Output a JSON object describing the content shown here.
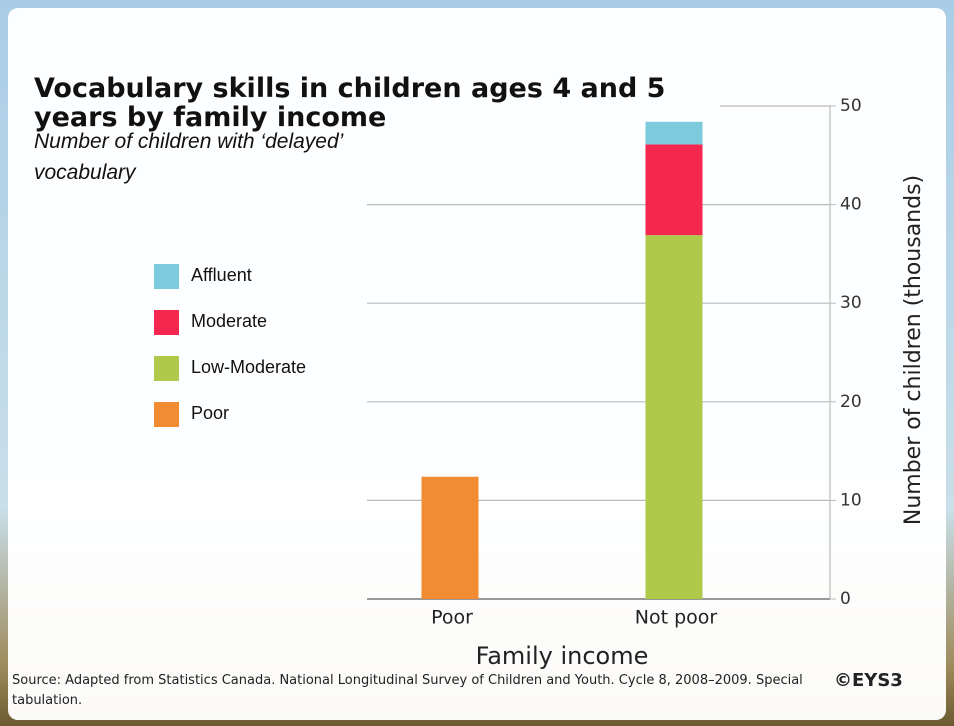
{
  "chart_data": {
    "type": "stacked_bar",
    "title": "Vocabulary skills in children ages 4 and 5 years by family income",
    "subtitle": "Number of children with ‘delayed’ vocabulary",
    "xlabel": "Family income",
    "ylabel": "Number of children (thousands)",
    "categories": [
      "Poor",
      "Not poor"
    ],
    "series": [
      {
        "name": "Poor",
        "color": "#f28c33",
        "values": [
          12.4,
          null
        ]
      },
      {
        "name": "Low-Moderate",
        "color": "#afc94a",
        "values": [
          null,
          36.9
        ]
      },
      {
        "name": "Moderate",
        "color": "#f4284e",
        "values": [
          null,
          9.2
        ]
      },
      {
        "name": "Affluent",
        "color": "#7ccbdc",
        "values": [
          null,
          2.3
        ]
      }
    ],
    "ylim": [
      0,
      50
    ],
    "yticks": [
      0,
      10,
      20,
      30,
      40,
      50
    ],
    "grid": true,
    "source": "Source: Adapted from Statistics Canada. National Longitudinal Survey of Children and Youth.  Cycle 8, 2008–2009. Special tabulation.",
    "logo": "©EYS3"
  }
}
